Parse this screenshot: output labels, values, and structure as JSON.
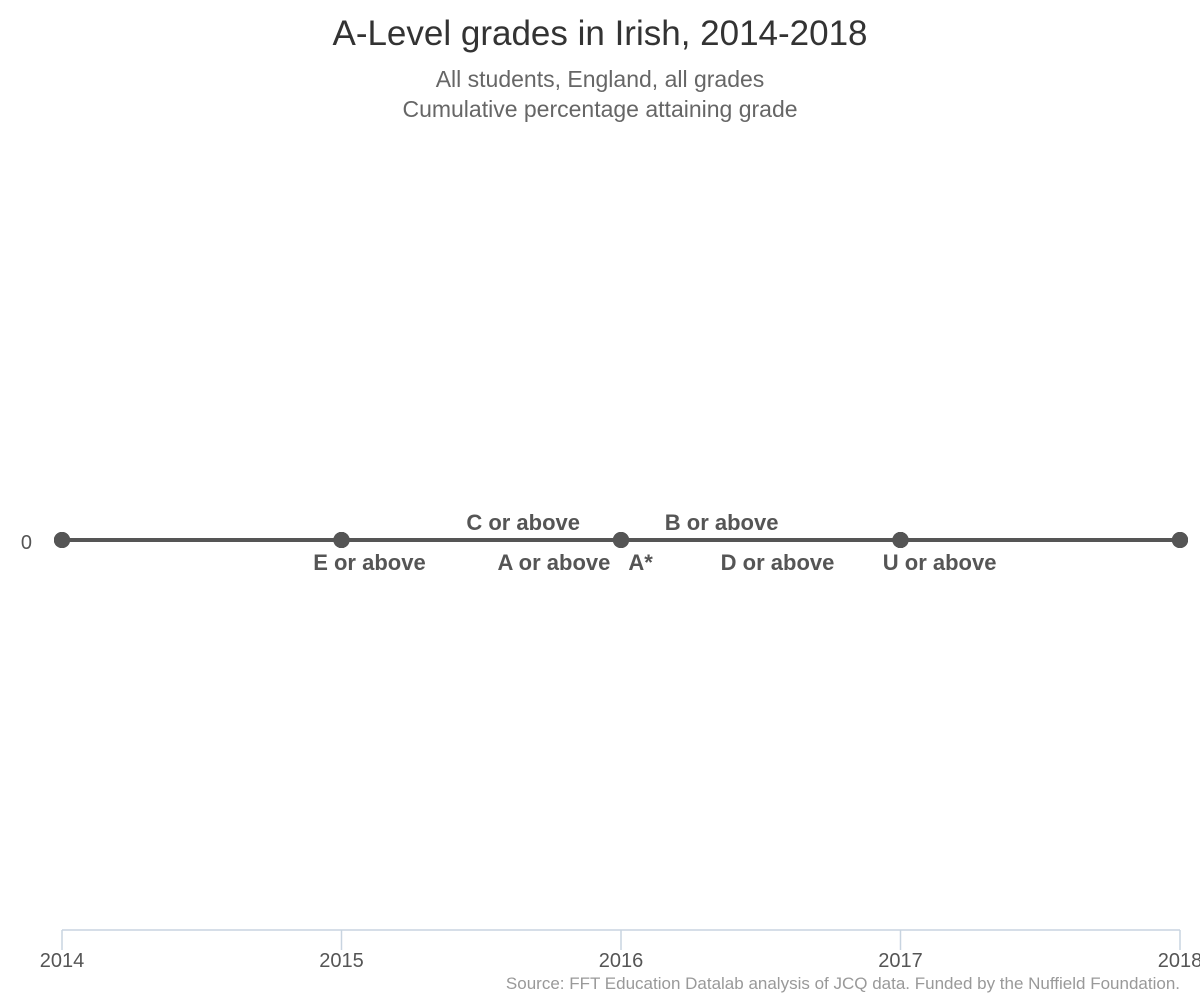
{
  "chart_data": {
    "type": "line",
    "title": "A-Level grades in Irish, 2014-2018",
    "subtitle": [
      "All students, England, all grades",
      "Cumulative percentage attaining grade"
    ],
    "x": [
      "2014",
      "2015",
      "2016",
      "2017",
      "2018"
    ],
    "y_ticks": [
      "0"
    ],
    "series": [
      {
        "name": "A*",
        "values": [
          0,
          0,
          0,
          0,
          0
        ]
      },
      {
        "name": "A or above",
        "values": [
          0,
          0,
          0,
          0,
          0
        ]
      },
      {
        "name": "B or above",
        "values": [
          0,
          0,
          0,
          0,
          0
        ]
      },
      {
        "name": "C or above",
        "values": [
          0,
          0,
          0,
          0,
          0
        ]
      },
      {
        "name": "D or above",
        "values": [
          0,
          0,
          0,
          0,
          0
        ]
      },
      {
        "name": "E or above",
        "values": [
          0,
          0,
          0,
          0,
          0
        ]
      },
      {
        "name": "U or above",
        "values": [
          0,
          0,
          0,
          0,
          0
        ]
      }
    ],
    "series_labels": [
      {
        "text": "C or above",
        "x": 2015.65,
        "side": "above"
      },
      {
        "text": "B or above",
        "x": 2016.36,
        "side": "above"
      },
      {
        "text": "E or above",
        "x": 2015.1,
        "side": "below"
      },
      {
        "text": "A or above",
        "x": 2015.76,
        "side": "below"
      },
      {
        "text": "A*",
        "x": 2016.07,
        "side": "below"
      },
      {
        "text": "D or above",
        "x": 2016.56,
        "side": "below"
      },
      {
        "text": "U or above",
        "x": 2017.14,
        "side": "below"
      }
    ],
    "grid": false,
    "legend": "none",
    "colors": {
      "line": "#555555",
      "axis": "#c8d4e0",
      "label": "#555555"
    }
  },
  "source": "Source: FFT Education Datalab analysis of JCQ data. Funded by the Nuffield Foundation."
}
